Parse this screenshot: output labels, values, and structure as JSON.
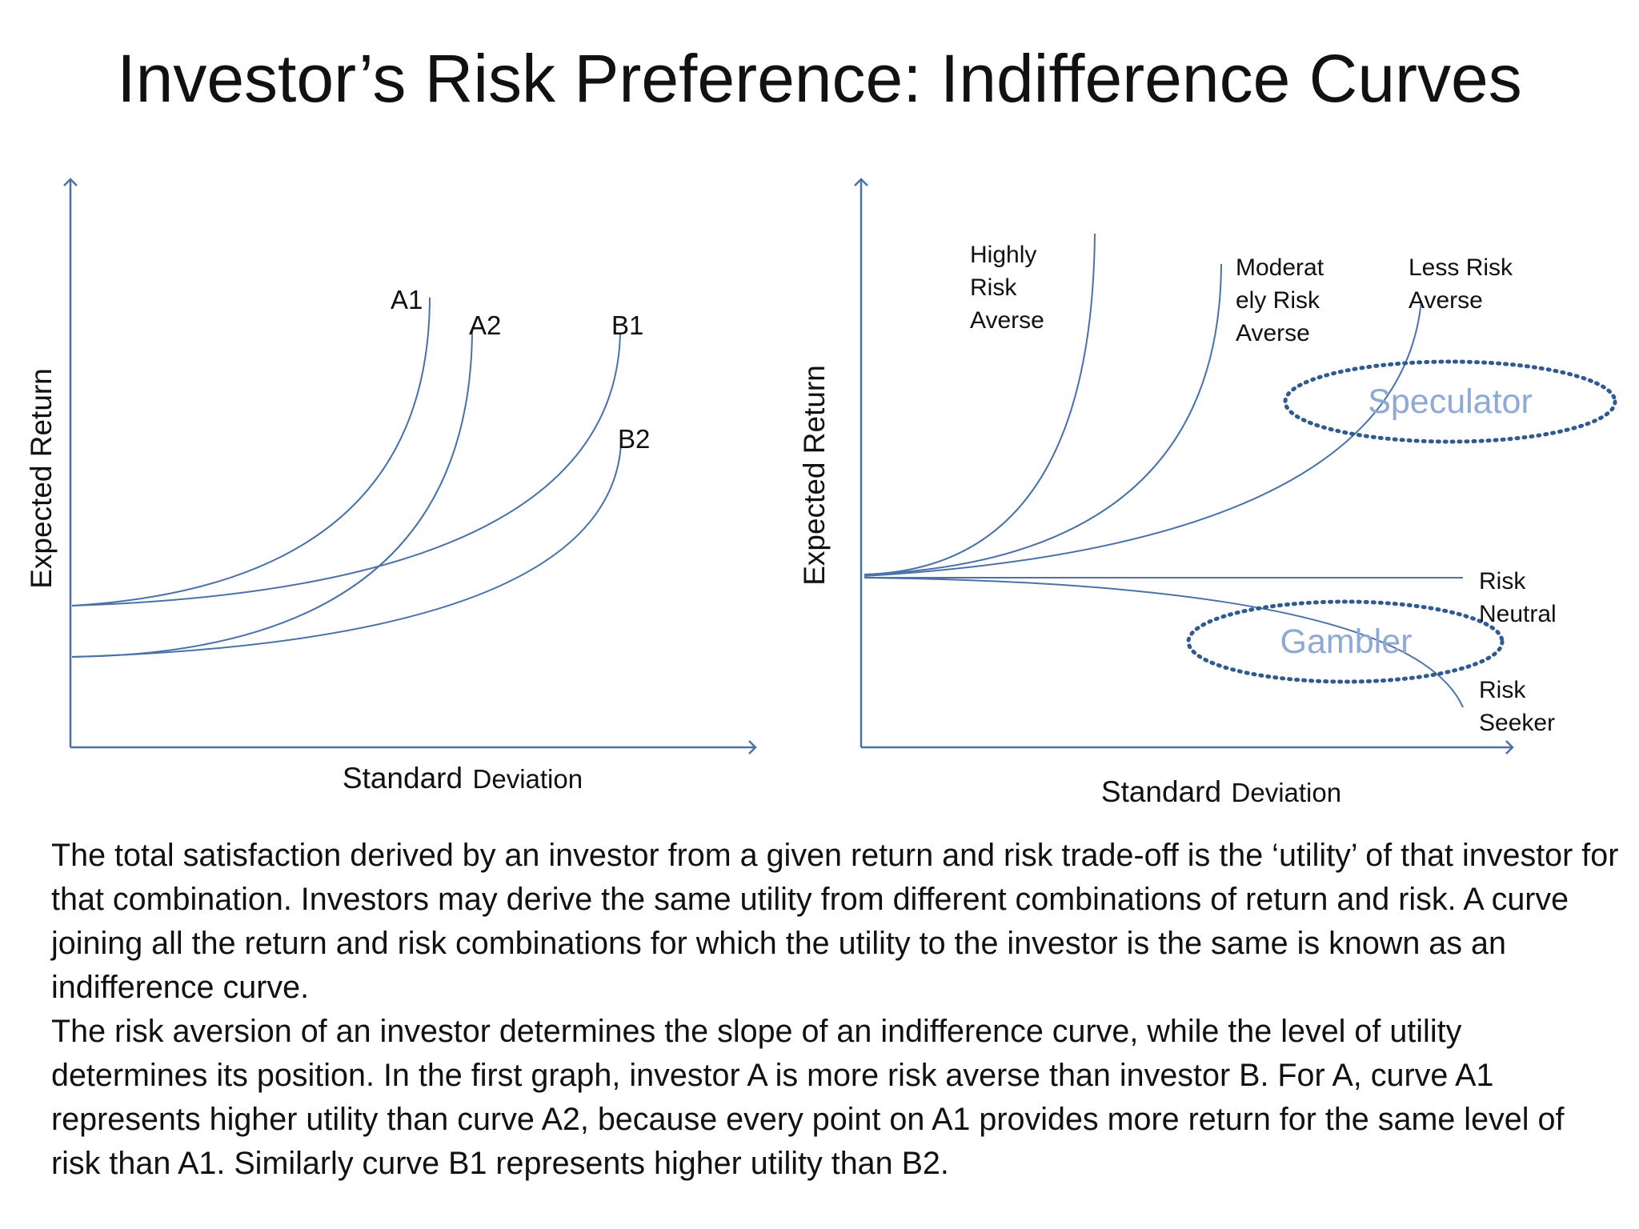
{
  "title": "Investor’s Risk Preference: Indifference Curves",
  "left_diagram": {
    "y_axis_label": "Expected Return",
    "x_axis_label_main": "Standard",
    "x_axis_label_small": "Deviation",
    "curves": [
      {
        "label": "A1"
      },
      {
        "label": "A2"
      },
      {
        "label": "B1"
      },
      {
        "label": "B2"
      }
    ]
  },
  "right_diagram": {
    "y_axis_label": "Expected Return",
    "x_axis_label_main": "Standard",
    "x_axis_label_small": "Deviation",
    "curves": [
      {
        "label_lines": [
          "Highly",
          "Risk",
          "Averse"
        ]
      },
      {
        "label_lines": [
          "Moderat",
          "ely Risk",
          "Averse"
        ]
      },
      {
        "label_lines": [
          "Less Risk",
          "Averse"
        ]
      },
      {
        "label_lines": [
          "Risk",
          "Neutral"
        ]
      },
      {
        "label_lines": [
          "Risk",
          "Seeker"
        ]
      }
    ],
    "regions": [
      {
        "label": "Speculator"
      },
      {
        "label": "Gambler"
      }
    ]
  },
  "colors": {
    "line": "#4a72a8",
    "region_label": "#8eaad4",
    "text": "#111111"
  },
  "paragraphs": [
    "The total satisfaction derived by an investor from a given return and risk trade-off is the ‘utility’ of that investor for that combination. Investors may derive the same utility from different combinations of return and risk. A curve joining all the return and risk combinations for which the utility to the investor is the same is known as an indifference curve.",
    "The risk aversion of an investor determines the slope of an indifference curve, while the level of utility determines its position. In the first graph, investor A is more risk averse than investor B. For A, curve A1 represents higher utility than curve A2, because every point on A1 provides more return for the same level of risk than A1. Similarly curve B1 represents higher utility than B2."
  ]
}
